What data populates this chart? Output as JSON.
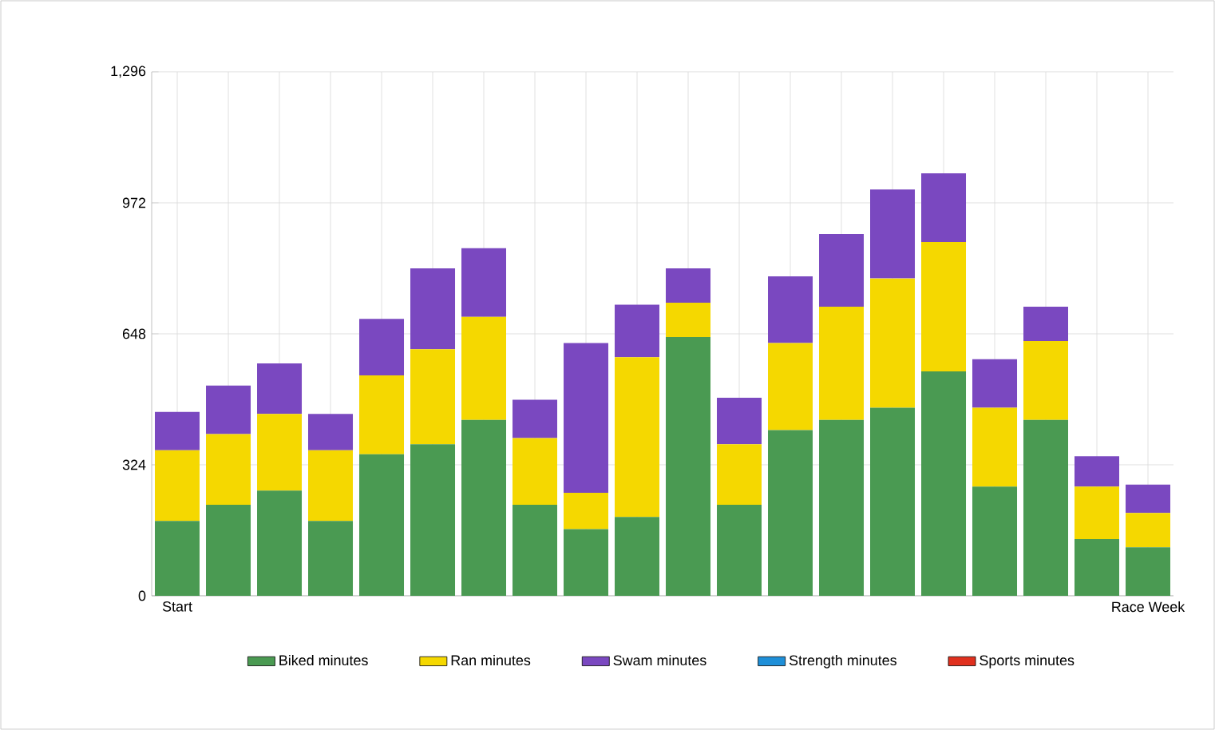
{
  "chart_data": {
    "type": "bar",
    "stacked": true,
    "categories": [
      "Start",
      null,
      null,
      null,
      null,
      null,
      null,
      null,
      null,
      null,
      null,
      null,
      null,
      null,
      null,
      null,
      null,
      null,
      null,
      "Race Week"
    ],
    "series": [
      {
        "name": "Biked minutes",
        "color": "#4a9a52",
        "values": [
          185,
          225,
          260,
          185,
          350,
          375,
          435,
          225,
          165,
          195,
          640,
          225,
          410,
          435,
          465,
          555,
          270,
          435,
          140,
          120
        ]
      },
      {
        "name": "Ran minutes",
        "color": "#f5d800",
        "values": [
          175,
          175,
          190,
          175,
          195,
          235,
          255,
          165,
          90,
          395,
          85,
          150,
          215,
          280,
          320,
          320,
          195,
          195,
          130,
          85
        ]
      },
      {
        "name": "Swam minutes",
        "color": "#7a48c0",
        "values": [
          95,
          120,
          125,
          90,
          140,
          200,
          170,
          95,
          370,
          130,
          85,
          115,
          165,
          180,
          220,
          170,
          120,
          85,
          75,
          70
        ]
      },
      {
        "name": "Strength minutes",
        "color": "#1e8fd8",
        "values": [
          0,
          0,
          0,
          0,
          0,
          0,
          0,
          0,
          0,
          0,
          0,
          0,
          0,
          0,
          0,
          0,
          0,
          0,
          0,
          0
        ]
      },
      {
        "name": "Sports minutes",
        "color": "#e0301e",
        "values": [
          0,
          0,
          0,
          0,
          0,
          0,
          0,
          0,
          0,
          0,
          0,
          0,
          0,
          0,
          0,
          0,
          0,
          0,
          0,
          0
        ]
      }
    ],
    "ylim": [
      0,
      1296
    ],
    "yticks": [
      0,
      324,
      648,
      972,
      {
        "value": 1296,
        "label": "1,296"
      }
    ],
    "grid": true,
    "legend": "bottom"
  }
}
